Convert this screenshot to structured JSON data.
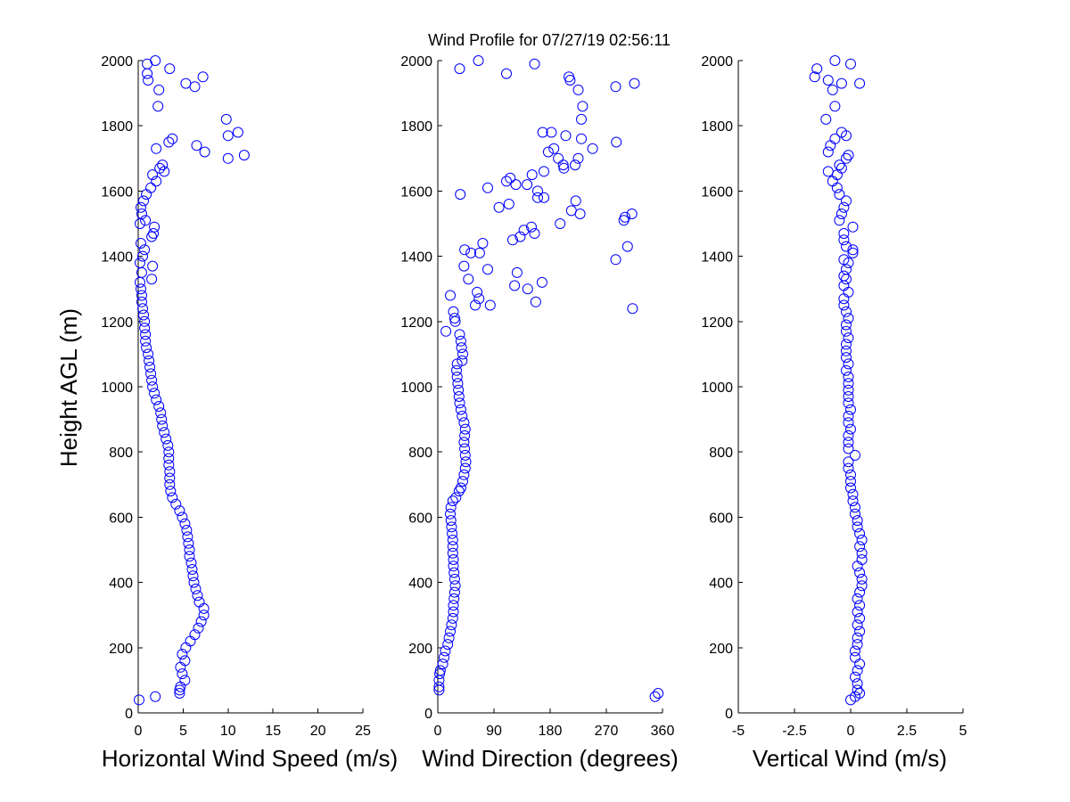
{
  "chart_data": [
    {
      "type": "scatter",
      "title": "Wind Profile for  07/27/19 02:56:11",
      "xlabel": "Horizontal Wind Speed (m/s)",
      "ylabel": "Height AGL (m)",
      "xlim": [
        0,
        25
      ],
      "ylim": [
        0,
        2000
      ],
      "xticks": [
        "0",
        "5",
        "10",
        "15",
        "20",
        "25"
      ],
      "yticks": [
        "0",
        "200",
        "400",
        "600",
        "800",
        "1000",
        "1200",
        "1400",
        "1600",
        "1800",
        "2000"
      ],
      "color": "#0000ff",
      "marker": "circle",
      "points": [
        [
          0.1,
          40
        ],
        [
          1.9,
          50
        ],
        [
          4.6,
          60
        ],
        [
          4.6,
          70
        ],
        [
          4.7,
          80
        ],
        [
          5.2,
          100
        ],
        [
          4.9,
          120
        ],
        [
          4.7,
          140
        ],
        [
          5.2,
          160
        ],
        [
          4.9,
          180
        ],
        [
          5.3,
          200
        ],
        [
          5.8,
          220
        ],
        [
          6.3,
          240
        ],
        [
          6.7,
          260
        ],
        [
          7.0,
          280
        ],
        [
          7.3,
          300
        ],
        [
          7.3,
          320
        ],
        [
          6.8,
          340
        ],
        [
          6.6,
          360
        ],
        [
          6.4,
          380
        ],
        [
          6.2,
          400
        ],
        [
          6.1,
          420
        ],
        [
          6.0,
          440
        ],
        [
          5.9,
          460
        ],
        [
          5.7,
          480
        ],
        [
          5.7,
          500
        ],
        [
          5.6,
          520
        ],
        [
          5.5,
          540
        ],
        [
          5.4,
          560
        ],
        [
          5.2,
          580
        ],
        [
          4.9,
          600
        ],
        [
          4.6,
          620
        ],
        [
          4.2,
          640
        ],
        [
          3.8,
          660
        ],
        [
          3.6,
          680
        ],
        [
          3.5,
          700
        ],
        [
          3.5,
          720
        ],
        [
          3.5,
          740
        ],
        [
          3.4,
          760
        ],
        [
          3.4,
          780
        ],
        [
          3.4,
          800
        ],
        [
          3.3,
          820
        ],
        [
          3.1,
          840
        ],
        [
          2.9,
          860
        ],
        [
          2.7,
          880
        ],
        [
          2.6,
          900
        ],
        [
          2.5,
          920
        ],
        [
          2.3,
          940
        ],
        [
          2.0,
          960
        ],
        [
          1.8,
          980
        ],
        [
          1.6,
          1000
        ],
        [
          1.5,
          1020
        ],
        [
          1.4,
          1040
        ],
        [
          1.3,
          1060
        ],
        [
          1.2,
          1080
        ],
        [
          1.1,
          1100
        ],
        [
          0.9,
          1120
        ],
        [
          0.8,
          1140
        ],
        [
          0.8,
          1160
        ],
        [
          0.7,
          1180
        ],
        [
          0.7,
          1200
        ],
        [
          0.6,
          1220
        ],
        [
          0.5,
          1240
        ],
        [
          0.4,
          1260
        ],
        [
          0.4,
          1280
        ],
        [
          0.3,
          1300
        ],
        [
          0.2,
          1320
        ],
        [
          1.5,
          1330
        ],
        [
          0.4,
          1350
        ],
        [
          1.6,
          1370
        ],
        [
          0.2,
          1380
        ],
        [
          0.5,
          1400
        ],
        [
          0.7,
          1420
        ],
        [
          0.3,
          1440
        ],
        [
          1.5,
          1460
        ],
        [
          1.7,
          1470
        ],
        [
          1.8,
          1490
        ],
        [
          0.2,
          1500
        ],
        [
          0.8,
          1510
        ],
        [
          0.4,
          1530
        ],
        [
          0.3,
          1550
        ],
        [
          0.6,
          1570
        ],
        [
          0.9,
          1590
        ],
        [
          1.4,
          1610
        ],
        [
          2.0,
          1630
        ],
        [
          1.6,
          1650
        ],
        [
          2.9,
          1660
        ],
        [
          2.4,
          1670
        ],
        [
          2.7,
          1680
        ],
        [
          11.8,
          1710
        ],
        [
          10.0,
          1700
        ],
        [
          7.4,
          1720
        ],
        [
          2.0,
          1730
        ],
        [
          6.5,
          1740
        ],
        [
          3.4,
          1750
        ],
        [
          3.8,
          1760
        ],
        [
          10.0,
          1770
        ],
        [
          11.1,
          1780
        ],
        [
          9.8,
          1820
        ],
        [
          2.2,
          1860
        ],
        [
          2.3,
          1910
        ],
        [
          6.3,
          1920
        ],
        [
          5.3,
          1930
        ],
        [
          1.1,
          1940
        ],
        [
          7.2,
          1950
        ],
        [
          1.0,
          1960
        ],
        [
          3.5,
          1975
        ],
        [
          1.0,
          1990
        ],
        [
          1.9,
          2000
        ]
      ]
    },
    {
      "type": "scatter",
      "xlabel": "Wind Direction (degrees)",
      "xlim": [
        0,
        360
      ],
      "ylim": [
        0,
        2000
      ],
      "xticks": [
        "0",
        "90",
        "180",
        "270",
        "360"
      ],
      "yticks": [
        "0",
        "200",
        "400",
        "600",
        "800",
        "1000",
        "1200",
        "1400",
        "1600",
        "1800",
        "2000"
      ],
      "color": "#0000ff",
      "marker": "circle",
      "points": [
        [
          348,
          50
        ],
        [
          353,
          60
        ],
        [
          2,
          70
        ],
        [
          2,
          80
        ],
        [
          2,
          100
        ],
        [
          3,
          120
        ],
        [
          4,
          130
        ],
        [
          8,
          150
        ],
        [
          10,
          170
        ],
        [
          12,
          190
        ],
        [
          16,
          210
        ],
        [
          18,
          230
        ],
        [
          20,
          250
        ],
        [
          22,
          270
        ],
        [
          24,
          290
        ],
        [
          25,
          310
        ],
        [
          25,
          330
        ],
        [
          26,
          350
        ],
        [
          27,
          370
        ],
        [
          28,
          390
        ],
        [
          27,
          410
        ],
        [
          26,
          430
        ],
        [
          25,
          450
        ],
        [
          25,
          470
        ],
        [
          24,
          490
        ],
        [
          24,
          510
        ],
        [
          24,
          530
        ],
        [
          23,
          550
        ],
        [
          22,
          570
        ],
        [
          21,
          590
        ],
        [
          20,
          610
        ],
        [
          21,
          630
        ],
        [
          24,
          650
        ],
        [
          29,
          660
        ],
        [
          34,
          680
        ],
        [
          37,
          690
        ],
        [
          40,
          710
        ],
        [
          42,
          730
        ],
        [
          44,
          750
        ],
        [
          45,
          770
        ],
        [
          44,
          790
        ],
        [
          43,
          810
        ],
        [
          42,
          830
        ],
        [
          43,
          850
        ],
        [
          44,
          870
        ],
        [
          42,
          890
        ],
        [
          39,
          910
        ],
        [
          37,
          930
        ],
        [
          35,
          950
        ],
        [
          34,
          970
        ],
        [
          33,
          990
        ],
        [
          32,
          1010
        ],
        [
          31,
          1030
        ],
        [
          30,
          1050
        ],
        [
          31,
          1070
        ],
        [
          39,
          1080
        ],
        [
          40,
          1100
        ],
        [
          38,
          1120
        ],
        [
          37,
          1140
        ],
        [
          35,
          1160
        ],
        [
          13,
          1170
        ],
        [
          28,
          1200
        ],
        [
          25,
          1230
        ],
        [
          20,
          1280
        ],
        [
          27,
          1210
        ],
        [
          60,
          1250
        ],
        [
          84,
          1250
        ],
        [
          66,
          1270
        ],
        [
          63,
          1290
        ],
        [
          123,
          1310
        ],
        [
          127,
          1350
        ],
        [
          49,
          1330
        ],
        [
          42,
          1370
        ],
        [
          80,
          1360
        ],
        [
          43,
          1420
        ],
        [
          67,
          1410
        ],
        [
          72,
          1440
        ],
        [
          53,
          1410
        ],
        [
          144,
          1300
        ],
        [
          157,
          1260
        ],
        [
          167,
          1320
        ],
        [
          285,
          1390
        ],
        [
          304,
          1430
        ],
        [
          312,
          1240
        ],
        [
          298,
          1510
        ],
        [
          300,
          1520
        ],
        [
          311,
          1530
        ],
        [
          196,
          1500
        ],
        [
          228,
          1530
        ],
        [
          221,
          1570
        ],
        [
          214,
          1540
        ],
        [
          155,
          1470
        ],
        [
          138,
          1480
        ],
        [
          150,
          1490
        ],
        [
          132,
          1460
        ],
        [
          120,
          1450
        ],
        [
          160,
          1600
        ],
        [
          160,
          1580
        ],
        [
          170,
          1580
        ],
        [
          125,
          1620
        ],
        [
          143,
          1620
        ],
        [
          116,
          1640
        ],
        [
          110,
          1630
        ],
        [
          151,
          1650
        ],
        [
          170,
          1660
        ],
        [
          80,
          1610
        ],
        [
          36,
          1590
        ],
        [
          98,
          1550
        ],
        [
          114,
          1560
        ],
        [
          177,
          1720
        ],
        [
          186,
          1730
        ],
        [
          193,
          1700
        ],
        [
          201,
          1680
        ],
        [
          220,
          1680
        ],
        [
          225,
          1700
        ],
        [
          248,
          1730
        ],
        [
          202,
          1670
        ],
        [
          230,
          1760
        ],
        [
          286,
          1750
        ],
        [
          182,
          1780
        ],
        [
          205,
          1770
        ],
        [
          230,
          1820
        ],
        [
          232,
          1860
        ],
        [
          168,
          1780
        ],
        [
          35,
          1975
        ],
        [
          65,
          2000
        ],
        [
          110,
          1960
        ],
        [
          155,
          1990
        ],
        [
          210,
          1950
        ],
        [
          212,
          1940
        ],
        [
          225,
          1910
        ],
        [
          285,
          1920
        ],
        [
          315,
          1930
        ]
      ]
    },
    {
      "type": "scatter",
      "xlabel": "Vertical Wind (m/s)",
      "xlim": [
        -5,
        5
      ],
      "ylim": [
        0,
        2000
      ],
      "xticks": [
        "-5",
        "-2.5",
        "0",
        "2.5",
        "5"
      ],
      "yticks": [
        "0",
        "200",
        "400",
        "600",
        "800",
        "1000",
        "1200",
        "1400",
        "1600",
        "1800",
        "2000"
      ],
      "color": "#0000ff",
      "marker": "circle",
      "points": [
        [
          0.0,
          40
        ],
        [
          0.2,
          50
        ],
        [
          0.4,
          60
        ],
        [
          0.3,
          70
        ],
        [
          0.3,
          90
        ],
        [
          0.2,
          110
        ],
        [
          0.3,
          130
        ],
        [
          0.4,
          150
        ],
        [
          0.2,
          170
        ],
        [
          0.2,
          190
        ],
        [
          0.3,
          210
        ],
        [
          0.3,
          230
        ],
        [
          0.4,
          250
        ],
        [
          0.3,
          270
        ],
        [
          0.4,
          290
        ],
        [
          0.3,
          310
        ],
        [
          0.4,
          330
        ],
        [
          0.3,
          350
        ],
        [
          0.4,
          370
        ],
        [
          0.5,
          390
        ],
        [
          0.5,
          410
        ],
        [
          0.4,
          430
        ],
        [
          0.3,
          450
        ],
        [
          0.5,
          470
        ],
        [
          0.5,
          490
        ],
        [
          0.4,
          510
        ],
        [
          0.5,
          530
        ],
        [
          0.4,
          550
        ],
        [
          0.3,
          570
        ],
        [
          0.3,
          590
        ],
        [
          0.2,
          610
        ],
        [
          0.2,
          630
        ],
        [
          0.1,
          650
        ],
        [
          0.1,
          670
        ],
        [
          0.0,
          690
        ],
        [
          0.0,
          710
        ],
        [
          0.0,
          730
        ],
        [
          -0.1,
          750
        ],
        [
          -0.1,
          770
        ],
        [
          0.2,
          790
        ],
        [
          -0.1,
          810
        ],
        [
          -0.1,
          830
        ],
        [
          -0.1,
          850
        ],
        [
          0.0,
          870
        ],
        [
          -0.1,
          890
        ],
        [
          -0.1,
          910
        ],
        [
          0.0,
          930
        ],
        [
          -0.1,
          950
        ],
        [
          -0.1,
          970
        ],
        [
          -0.1,
          990
        ],
        [
          -0.1,
          1010
        ],
        [
          -0.1,
          1030
        ],
        [
          -0.2,
          1050
        ],
        [
          -0.1,
          1070
        ],
        [
          -0.2,
          1090
        ],
        [
          -0.2,
          1110
        ],
        [
          -0.2,
          1130
        ],
        [
          -0.1,
          1150
        ],
        [
          -0.2,
          1170
        ],
        [
          -0.2,
          1190
        ],
        [
          -0.1,
          1210
        ],
        [
          -0.2,
          1230
        ],
        [
          -0.3,
          1250
        ],
        [
          -0.3,
          1270
        ],
        [
          -0.1,
          1290
        ],
        [
          -0.3,
          1310
        ],
        [
          -0.2,
          1330
        ],
        [
          -0.3,
          1340
        ],
        [
          -0.2,
          1360
        ],
        [
          -0.1,
          1380
        ],
        [
          -0.3,
          1390
        ],
        [
          0.1,
          1410
        ],
        [
          0.1,
          1420
        ],
        [
          -0.2,
          1430
        ],
        [
          -0.3,
          1450
        ],
        [
          -0.3,
          1470
        ],
        [
          0.1,
          1490
        ],
        [
          -0.5,
          1510
        ],
        [
          -0.4,
          1530
        ],
        [
          -0.3,
          1550
        ],
        [
          -0.2,
          1570
        ],
        [
          -0.5,
          1590
        ],
        [
          -0.6,
          1610
        ],
        [
          -0.8,
          1630
        ],
        [
          -0.6,
          1650
        ],
        [
          -1.0,
          1660
        ],
        [
          -0.4,
          1670
        ],
        [
          -0.5,
          1680
        ],
        [
          -0.2,
          1700
        ],
        [
          -0.1,
          1710
        ],
        [
          -1.0,
          1720
        ],
        [
          -0.9,
          1740
        ],
        [
          -0.7,
          1760
        ],
        [
          -0.4,
          1780
        ],
        [
          -0.2,
          1770
        ],
        [
          -1.1,
          1820
        ],
        [
          -0.7,
          1860
        ],
        [
          -0.8,
          1910
        ],
        [
          -0.4,
          1930
        ],
        [
          -1.0,
          1940
        ],
        [
          -1.6,
          1950
        ],
        [
          -1.5,
          1975
        ],
        [
          0.4,
          1930
        ],
        [
          -0.7,
          2000
        ],
        [
          0.0,
          1990
        ]
      ]
    }
  ]
}
